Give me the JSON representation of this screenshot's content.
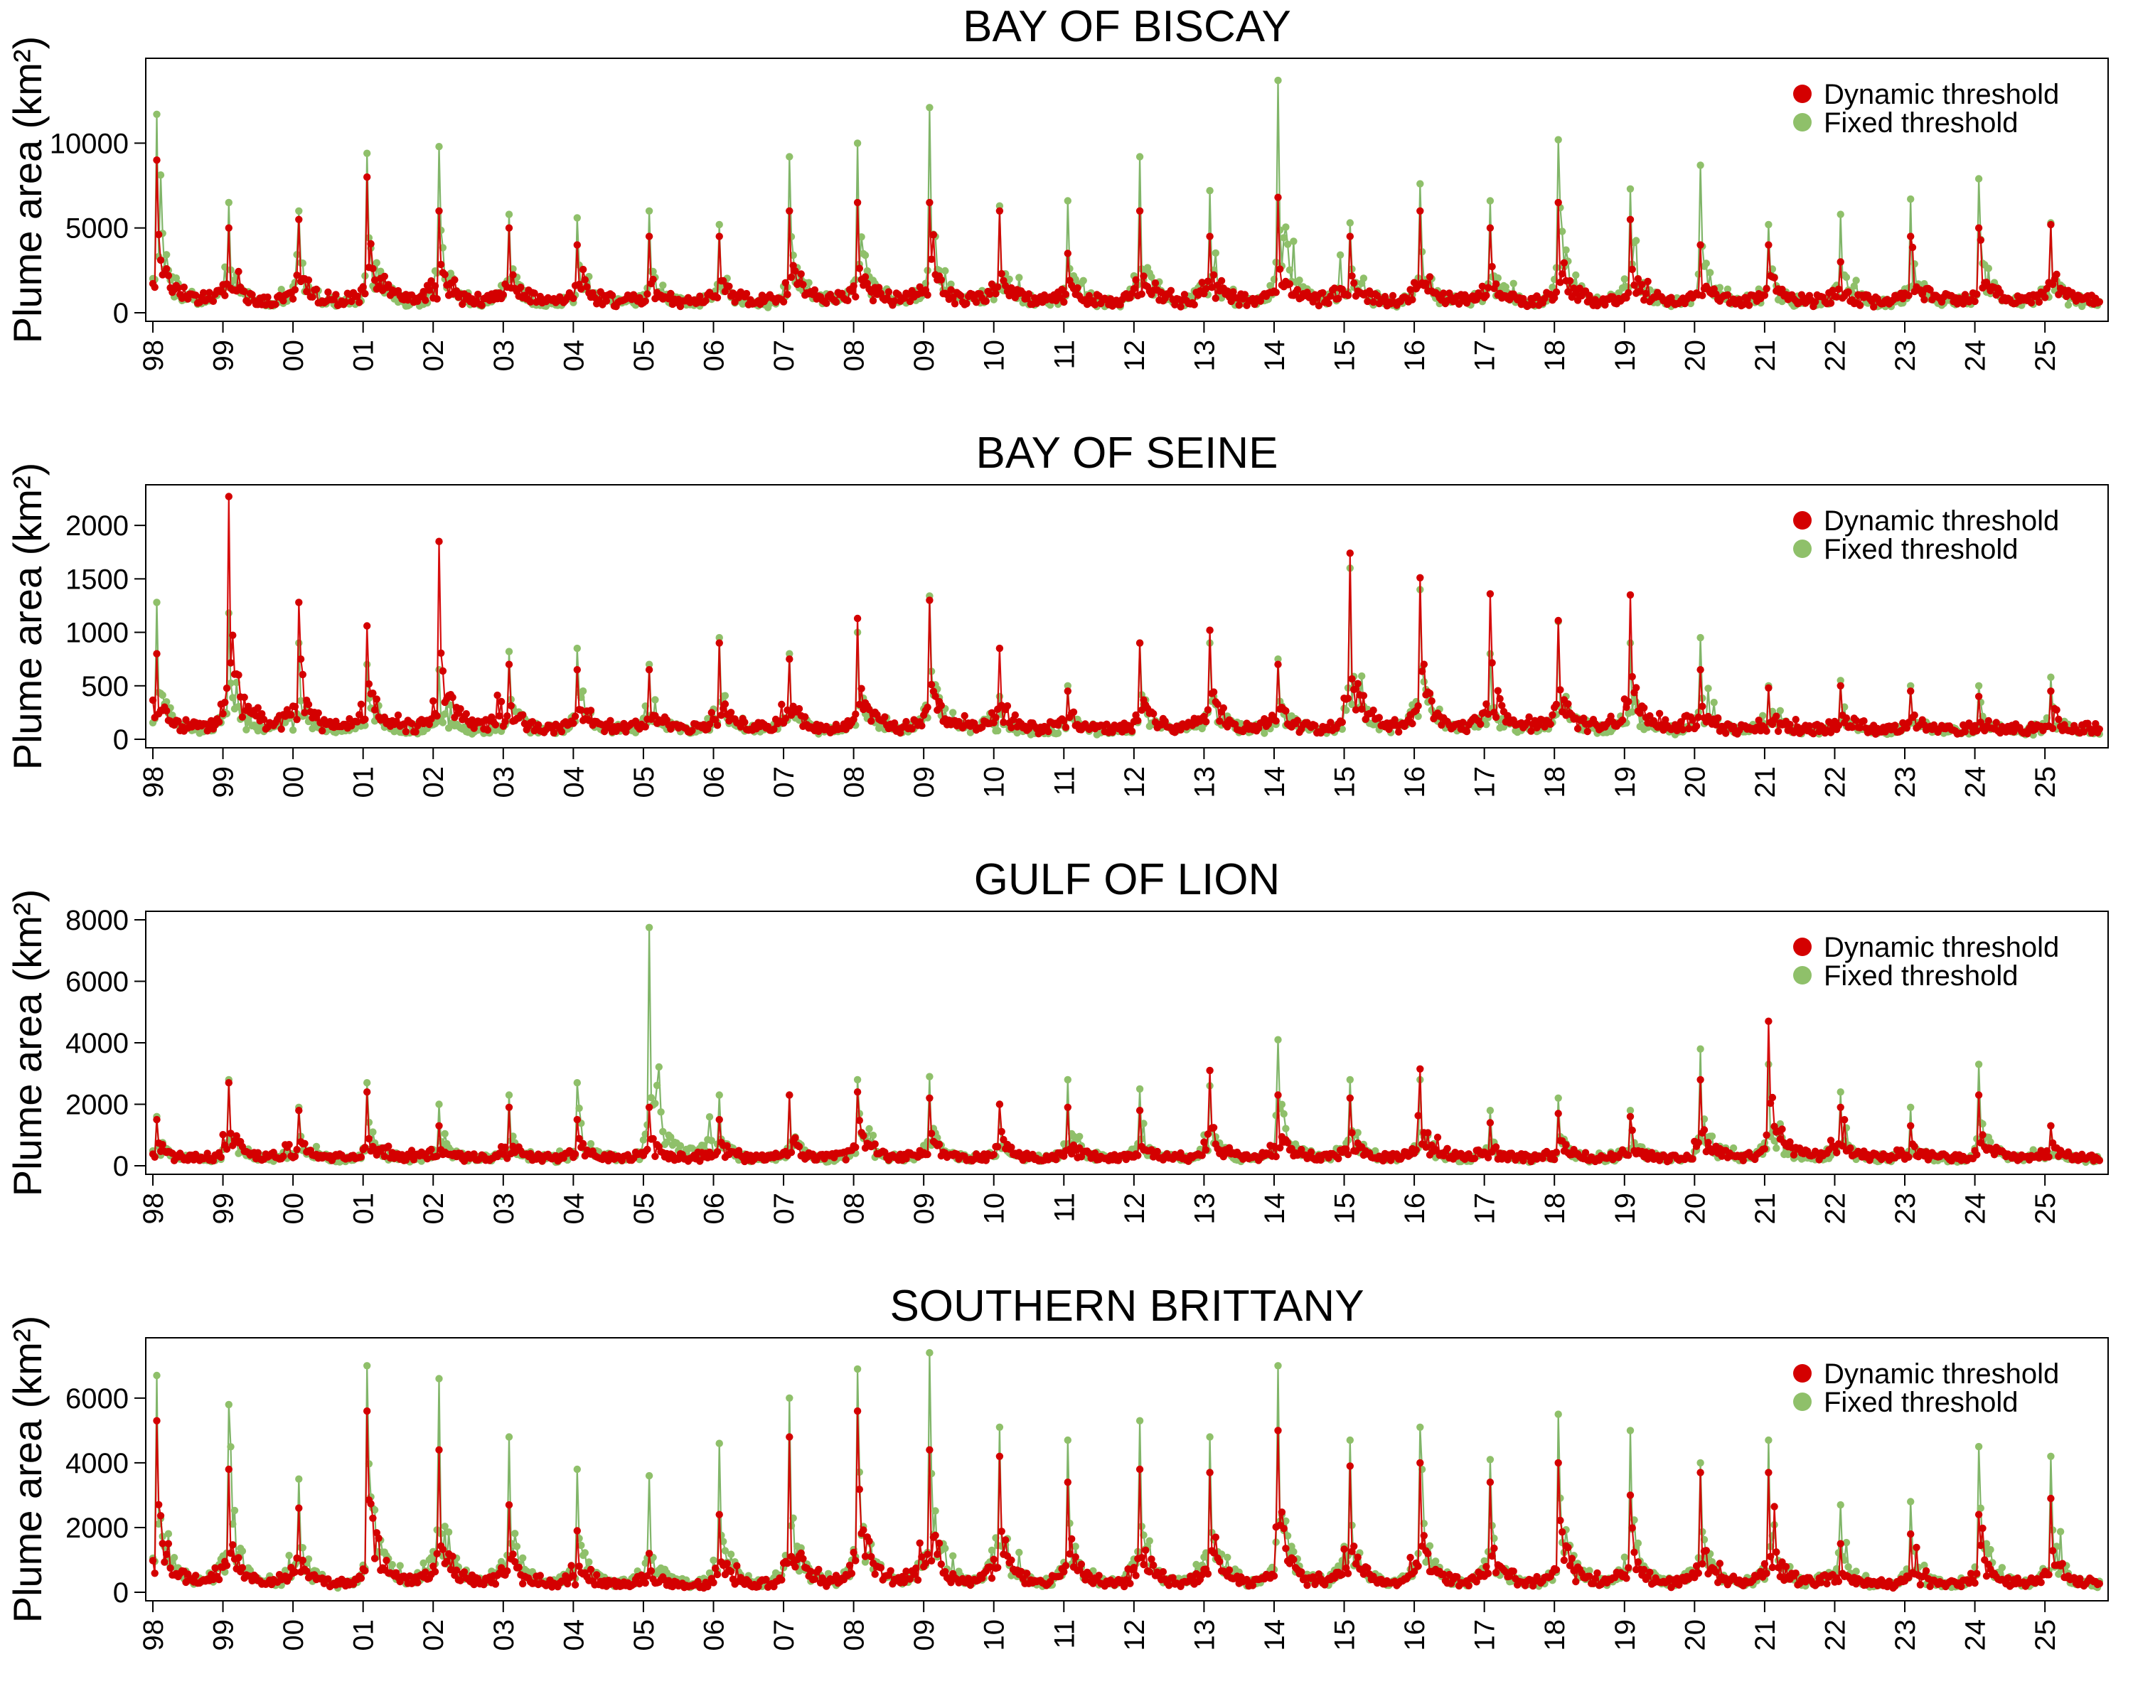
{
  "colors": {
    "dynamic": "#d40000",
    "fixed": "#8fc06a",
    "fixed_line": "#6aa84f",
    "axis": "#000000"
  },
  "chart_data": [
    {
      "type": "line",
      "title": "BAY OF BISCAY",
      "ylabel": "Plume area (km²)",
      "xlabel": "",
      "x_range": [
        1998,
        2025.8
      ],
      "x_tick_labels": [
        "98",
        "99",
        "00",
        "01",
        "02",
        "03",
        "04",
        "05",
        "06",
        "07",
        "08",
        "09",
        "10",
        "11",
        "12",
        "13",
        "14",
        "15",
        "16",
        "17",
        "18",
        "19",
        "20",
        "21",
        "22",
        "23",
        "24",
        "25"
      ],
      "ylim": [
        0,
        14500
      ],
      "y_ticks": [
        0,
        5000,
        10000
      ],
      "legend": [
        "Dynamic threshold",
        "Fixed threshold"
      ],
      "legend_position": "top-right",
      "grid": false,
      "series": [
        {
          "name": "Dynamic threshold",
          "peaks": [
            9000,
            5000,
            5500,
            8000,
            6000,
            5000,
            4000,
            4500,
            4500,
            6000,
            6500,
            6500,
            6000,
            3500,
            6000,
            4500,
            6800,
            4500,
            6000,
            5000,
            6500,
            5500,
            4000,
            4000,
            3000,
            4500,
            5000,
            5200
          ],
          "base": 700
        },
        {
          "name": "Fixed threshold",
          "peaks": [
            11700,
            6500,
            6000,
            9400,
            9800,
            5800,
            5600,
            6000,
            5200,
            9200,
            10000,
            12100,
            6300,
            6600,
            9200,
            7200,
            13700,
            5300,
            7600,
            6600,
            10200,
            7300,
            8700,
            5200,
            5800,
            6700,
            7900,
            5300
          ],
          "base": 500
        }
      ]
    },
    {
      "type": "line",
      "title": "BAY OF SEINE",
      "ylabel": "Plume area (km²)",
      "xlabel": "",
      "x_range": [
        1998,
        2025.8
      ],
      "x_tick_labels": [
        "98",
        "99",
        "00",
        "01",
        "02",
        "03",
        "04",
        "05",
        "06",
        "07",
        "08",
        "09",
        "10",
        "11",
        "12",
        "13",
        "14",
        "15",
        "16",
        "17",
        "18",
        "19",
        "20",
        "21",
        "22",
        "23",
        "24",
        "25"
      ],
      "ylim": [
        0,
        2300
      ],
      "y_ticks": [
        0,
        500,
        1000,
        1500,
        2000
      ],
      "legend": [
        "Dynamic threshold",
        "Fixed threshold"
      ],
      "legend_position": "top-right",
      "grid": false,
      "series": [
        {
          "name": "Dynamic threshold",
          "peaks": [
            800,
            2270,
            1280,
            1060,
            1850,
            700,
            650,
            650,
            900,
            750,
            1130,
            1300,
            850,
            450,
            900,
            1020,
            700,
            1740,
            1510,
            1360,
            1110,
            1350,
            650,
            480,
            500,
            450,
            400,
            450
          ],
          "base": 100
        },
        {
          "name": "Fixed threshold",
          "peaks": [
            1280,
            1180,
            900,
            700,
            650,
            820,
            850,
            700,
            950,
            800,
            1000,
            1340,
            400,
            500,
            900,
            900,
            750,
            1600,
            1400,
            800,
            1100,
            900,
            950,
            500,
            550,
            500,
            500,
            580
          ],
          "base": 80
        }
      ]
    },
    {
      "type": "line",
      "title": "GULF OF LION",
      "ylabel": "Plume area (km²)",
      "xlabel": "",
      "x_range": [
        1998,
        2025.8
      ],
      "x_tick_labels": [
        "98",
        "99",
        "00",
        "01",
        "02",
        "03",
        "04",
        "05",
        "06",
        "07",
        "08",
        "09",
        "10",
        "11",
        "12",
        "13",
        "14",
        "15",
        "16",
        "17",
        "18",
        "19",
        "20",
        "21",
        "22",
        "23",
        "24",
        "25"
      ],
      "ylim": [
        0,
        8000
      ],
      "y_ticks": [
        0,
        2000,
        4000,
        6000,
        8000
      ],
      "legend": [
        "Dynamic threshold",
        "Fixed threshold"
      ],
      "legend_position": "top-right",
      "grid": false,
      "series": [
        {
          "name": "Dynamic threshold",
          "peaks": [
            1500,
            2700,
            1800,
            2400,
            1300,
            1900,
            1500,
            1900,
            1500,
            2300,
            2400,
            2200,
            2000,
            1900,
            1800,
            3100,
            2300,
            2200,
            3150,
            1400,
            1700,
            1600,
            2800,
            4700,
            1900,
            1300,
            2300,
            1300
          ],
          "base": 250
        },
        {
          "name": "Fixed threshold",
          "peaks": [
            1600,
            2800,
            1900,
            2700,
            2000,
            2300,
            2700,
            7750,
            2300,
            2300,
            2800,
            2900,
            2000,
            2800,
            2500,
            2600,
            4100,
            2800,
            2800,
            1800,
            2200,
            1800,
            3800,
            3300,
            2400,
            1900,
            3300,
            1300
          ],
          "base": 200
        }
      ]
    },
    {
      "type": "line",
      "title": "SOUTHERN BRITTANY",
      "ylabel": "Plume area (km²)",
      "xlabel": "",
      "x_range": [
        1998,
        2025.8
      ],
      "x_tick_labels": [
        "98",
        "99",
        "00",
        "01",
        "02",
        "03",
        "04",
        "05",
        "06",
        "07",
        "08",
        "09",
        "10",
        "11",
        "12",
        "13",
        "14",
        "15",
        "16",
        "17",
        "18",
        "19",
        "20",
        "21",
        "22",
        "23",
        "24",
        "25"
      ],
      "ylim": [
        0,
        7600
      ],
      "y_ticks": [
        0,
        2000,
        4000,
        6000
      ],
      "legend": [
        "Dynamic threshold",
        "Fixed threshold"
      ],
      "legend_position": "top-right",
      "grid": false,
      "series": [
        {
          "name": "Dynamic threshold",
          "peaks": [
            5300,
            3800,
            2600,
            5600,
            4400,
            2700,
            1900,
            1200,
            2400,
            4800,
            5600,
            4400,
            4200,
            3400,
            3800,
            3700,
            5000,
            3900,
            4000,
            3400,
            4000,
            3000,
            3700,
            3700,
            1500,
            1800,
            2400,
            2900
          ],
          "base": 250
        },
        {
          "name": "Fixed threshold",
          "peaks": [
            6700,
            5800,
            3500,
            7000,
            6600,
            4800,
            3800,
            3600,
            4600,
            6000,
            6900,
            7400,
            5100,
            4700,
            5300,
            4800,
            7000,
            4700,
            5100,
            4100,
            5500,
            5000,
            4000,
            4700,
            2700,
            2800,
            4500,
            4200
          ],
          "base": 200
        }
      ]
    }
  ]
}
